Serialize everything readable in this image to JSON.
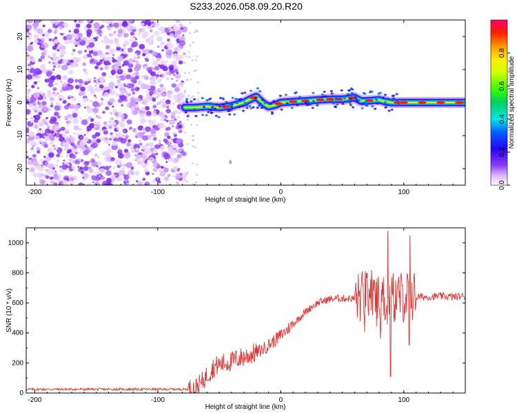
{
  "title": "S233.2026.058.09.20.R20",
  "chart_data": [
    {
      "id": "spectrogram",
      "type": "heatmap",
      "xlabel": "Height of straight line (km)",
      "ylabel": "Frequency (Hz)",
      "xlim": [
        -207,
        150
      ],
      "ylim": [
        -25,
        25
      ],
      "x_ticks": [
        -200,
        -100,
        0,
        100
      ],
      "y_ticks": [
        -20,
        -10,
        0,
        10,
        20
      ],
      "noise_region_x": [
        -207,
        -78
      ],
      "signal_track": {
        "x": [
          -78,
          -70,
          -60,
          -50,
          -40,
          -30,
          -25,
          -20,
          -15,
          -10,
          -5,
          0,
          10,
          20,
          30,
          40,
          50,
          55,
          60,
          65,
          70,
          80,
          85,
          90,
          100,
          110,
          120,
          130,
          140,
          150
        ],
        "freq": [
          -1.5,
          -1.5,
          -1.2,
          -1.5,
          -1.0,
          0.0,
          1.0,
          1.8,
          0.0,
          -1.2,
          -0.8,
          0.0,
          0.3,
          0.5,
          0.8,
          1.0,
          1.0,
          1.2,
          1.5,
          0.5,
          0.5,
          0.8,
          0.3,
          0.0,
          0.0,
          0.0,
          0.0,
          0.0,
          0.0,
          0.0
        ]
      },
      "colorbar": {
        "label": "Normalized spectral amplitude",
        "range": [
          0.0,
          1.0
        ],
        "ticks": [
          0.0,
          0.2,
          0.4,
          0.6,
          0.8
        ],
        "tick_labels": [
          "0.0",
          "0.2",
          "0.4",
          "0.6",
          "0.8"
        ]
      }
    },
    {
      "id": "snr",
      "type": "line",
      "xlabel": "Height of straight line (km)",
      "ylabel": "SNR (10 * v/v)",
      "xlim": [
        -207,
        150
      ],
      "ylim": [
        0,
        1100
      ],
      "x_ticks": [
        -200,
        -100,
        0,
        100
      ],
      "y_ticks": [
        0,
        200,
        400,
        600,
        800,
        1000
      ],
      "color": "#e83030",
      "series": [
        {
          "name": "SNR",
          "x": [
            -207,
            -180,
            -150,
            -120,
            -90,
            -78,
            -70,
            -65,
            -60,
            -55,
            -50,
            -45,
            -40,
            -35,
            -30,
            -25,
            -20,
            -15,
            -10,
            -5,
            0,
            5,
            10,
            15,
            20,
            25,
            30,
            35,
            40,
            45,
            50,
            55,
            60,
            65,
            70,
            75,
            80,
            85,
            87,
            90,
            95,
            100,
            105,
            110,
            120,
            130,
            140,
            150
          ],
          "y": [
            25,
            25,
            25,
            25,
            25,
            25,
            30,
            60,
            120,
            170,
            190,
            200,
            210,
            230,
            240,
            255,
            270,
            290,
            320,
            350,
            385,
            420,
            460,
            500,
            540,
            575,
            600,
            615,
            625,
            630,
            630,
            630,
            625,
            640,
            650,
            650,
            640,
            620,
            600,
            630,
            640,
            640,
            650,
            640,
            640,
            645,
            640,
            645
          ]
        }
      ]
    }
  ]
}
